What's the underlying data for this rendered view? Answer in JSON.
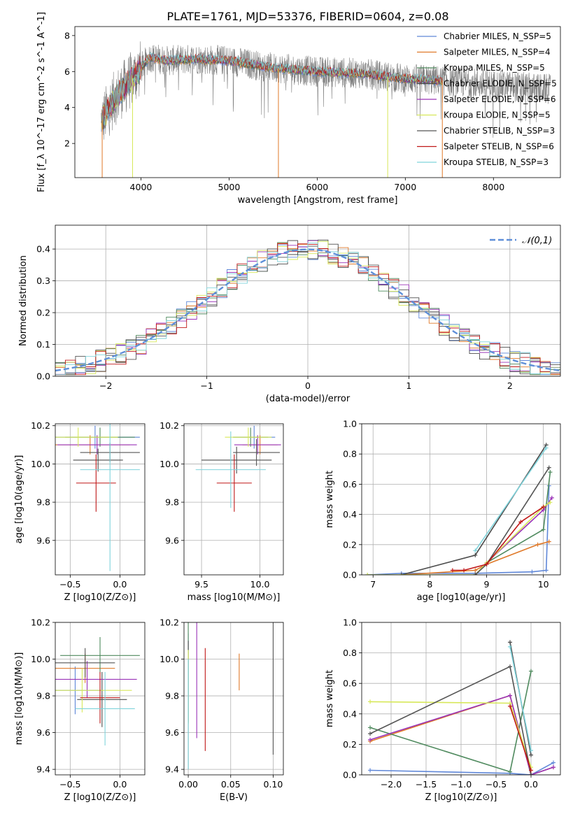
{
  "title": "PLATE=1761, MJD=53376, FIBERID=0604, z=0.08",
  "legend_entries": [
    {
      "label": "Chabrier MILES, N_SSP=5",
      "color": "#5f87d8"
    },
    {
      "label": "Salpeter MILES, N_SSP=4",
      "color": "#e07a2a"
    },
    {
      "label": "Kroupa MILES, N_SSP=5",
      "color": "#4f8a5e"
    },
    {
      "label": "Chabrier ELODIE, N_SSP=5",
      "color": "#4b4b4b"
    },
    {
      "label": "Salpeter ELODIE, N_SSP=6",
      "color": "#9a33b8"
    },
    {
      "label": "Kroupa ELODIE, N_SSP=5",
      "color": "#d7e85a"
    },
    {
      "label": "Chabrier STELIB, N_SSP=3",
      "color": "#555555"
    },
    {
      "label": "Salpeter STELIB, N_SSP=6",
      "color": "#c01818"
    },
    {
      "label": "Kroupa STELIB, N_SSP=3",
      "color": "#7fd3db"
    }
  ],
  "chart_data": [
    {
      "type": "line",
      "id": "spectrum",
      "xlabel": "wavelength [Angstrom, rest frame]",
      "ylabel": "Flux [f_λ 10^-17 erg cm^-2 s^-1 A^-1]",
      "xlim": [
        3250,
        8760
      ],
      "ylim": [
        0.1,
        8.5
      ],
      "xticks": [
        4000,
        5000,
        6000,
        7000,
        8000
      ],
      "yticks": [
        2,
        4,
        6,
        8
      ],
      "continuum_x": [
        3550,
        3700,
        3900,
        4100,
        4300,
        4600,
        5000,
        5500,
        6000,
        6500,
        7000,
        7400
      ],
      "continuum_y": [
        3.2,
        4.5,
        5.6,
        6.8,
        6.6,
        6.7,
        6.6,
        6.2,
        6.0,
        5.9,
        5.6,
        5.5
      ],
      "data_extent": [
        3550,
        8650
      ]
    },
    {
      "type": "histogram",
      "id": "residuals",
      "xlabel": "(data-model)/error",
      "ylabel": "Normed distribution",
      "xlim": [
        -2.5,
        2.5
      ],
      "ylim": [
        0,
        0.475
      ],
      "xticks": [
        -2,
        -1,
        0,
        1,
        2
      ],
      "yticks": [
        0.0,
        0.1,
        0.2,
        0.3,
        0.4
      ],
      "reference_curve": "N(0,1)"
    },
    {
      "type": "scatter",
      "id": "age_vs_Z",
      "xlabel": "Z [log10(Z/Z⊙)]",
      "ylabel": "age  [log10(age/yr)]",
      "xlim": [
        -0.65,
        0.25
      ],
      "ylim": [
        9.42,
        10.21
      ],
      "xticks": [
        -0.5,
        0.0
      ],
      "yticks": [
        9.6,
        9.8,
        10.0,
        10.2
      ]
    },
    {
      "type": "scatter",
      "id": "age_vs_mass",
      "xlabel": "mass [log10(M/M⊙)]",
      "xlim": [
        9.35,
        10.2
      ],
      "ylim": [
        9.42,
        10.21
      ],
      "xticks": [
        9.5,
        10.0
      ],
      "yticks": [
        9.6,
        9.8,
        10.0,
        10.2
      ]
    },
    {
      "type": "line",
      "id": "massweight_vs_age",
      "xlabel": "age  [log10(age/yr)]",
      "ylabel": "mass weight",
      "xlim": [
        6.8,
        10.3
      ],
      "ylim": [
        0,
        1
      ],
      "xticks": [
        7,
        8,
        9,
        10
      ],
      "yticks": [
        0.0,
        0.2,
        0.4,
        0.6,
        0.8,
        1.0
      ]
    },
    {
      "type": "scatter",
      "id": "mass_vs_Z",
      "xlabel": "Z [log10(Z/Z⊙)]",
      "ylabel": "mass [log10(M/M⊙)]",
      "xlim": [
        -0.65,
        0.25
      ],
      "ylim": [
        9.37,
        10.2
      ],
      "xticks": [
        -0.5,
        0.0
      ],
      "yticks": [
        9.4,
        9.6,
        9.8,
        10.0,
        10.2
      ]
    },
    {
      "type": "scatter",
      "id": "mass_vs_EBV",
      "xlabel": "E(B-V)",
      "xlim": [
        -0.005,
        0.112
      ],
      "ylim": [
        9.37,
        10.2
      ],
      "xticks": [
        0.0,
        0.05,
        0.1
      ],
      "yticks": [
        9.4,
        9.6,
        9.8,
        10.0,
        10.2
      ]
    },
    {
      "type": "line",
      "id": "massweight_vs_Z",
      "xlabel": "Z [log10(Z/Z⊙)]",
      "ylabel": "mass weight",
      "xlim": [
        -2.42,
        0.42
      ],
      "ylim": [
        0,
        1
      ],
      "xticks": [
        -2.0,
        -1.5,
        -1.0,
        -0.5,
        0.0
      ],
      "yticks": [
        0.0,
        0.2,
        0.4,
        0.6,
        0.8,
        1.0
      ]
    }
  ],
  "fits": [
    {
      "ageZ": [
        -0.25,
        10.14,
        0.45,
        0.06
      ],
      "ageM": [
        9.95,
        10.14,
        0.18,
        0.06
      ],
      "massZ": [
        -0.45,
        9.83,
        0.28,
        0.13
      ],
      "massE": [
        0.0,
        9.9,
        0.24
      ],
      "ageW": [
        [
          6.9,
          0.0
        ],
        [
          7.5,
          0.01
        ],
        [
          8.8,
          0.01
        ],
        [
          9.8,
          0.02
        ],
        [
          10.05,
          0.03
        ],
        [
          10.1,
          0.59
        ]
      ],
      "zW": [
        [
          -2.3,
          0.03
        ],
        [
          -0.3,
          0.01
        ],
        [
          0.0,
          0.0
        ],
        [
          0.32,
          0.08
        ]
      ]
    },
    {
      "ageZ": [
        -0.3,
        10.1,
        0.4,
        0.05
      ],
      "ageM": [
        10.0,
        10.1,
        0.15,
        0.05
      ],
      "massZ": [
        -0.35,
        9.95,
        0.3,
        0.08
      ],
      "massE": [
        0.06,
        9.93,
        0.1
      ],
      "ageW": [
        [
          7.5,
          0.0
        ],
        [
          8.8,
          0.03
        ],
        [
          9.0,
          0.07
        ],
        [
          9.9,
          0.2
        ],
        [
          10.1,
          0.22
        ]
      ],
      "zW": [
        [
          -2.3,
          0.22
        ],
        [
          -0.3,
          0.52
        ],
        [
          0.0,
          0.0
        ],
        [
          0.32,
          0.05
        ]
      ]
    },
    {
      "ageZ": [
        -0.2,
        10.14,
        0.35,
        0.05
      ],
      "ageM": [
        9.92,
        10.14,
        0.15,
        0.05
      ],
      "massZ": [
        -0.2,
        10.02,
        0.4,
        0.1
      ],
      "massE": [
        0.0,
        9.95,
        0.3
      ],
      "ageW": [
        [
          8.8,
          0.0
        ],
        [
          9.0,
          0.08
        ],
        [
          10.0,
          0.3
        ],
        [
          10.12,
          0.68
        ]
      ],
      "zW": [
        [
          -2.3,
          0.31
        ],
        [
          -0.3,
          0.02
        ],
        [
          0.0,
          0.68
        ]
      ]
    },
    {
      "ageZ": [
        -0.22,
        10.02,
        0.25,
        0.06
      ],
      "ageM": [
        9.8,
        10.02,
        0.3,
        0.07
      ],
      "massZ": [
        -0.18,
        9.78,
        0.25,
        0.15
      ],
      "massE": [
        0.0,
        9.75,
        0.35
      ],
      "ageW": [
        [
          7.5,
          0.0
        ],
        [
          8.8,
          0.13
        ],
        [
          10.05,
          0.86
        ]
      ],
      "zW": [
        [
          -0.3,
          0.87
        ],
        [
          0.0,
          0.13
        ]
      ]
    },
    {
      "ageZ": [
        -0.23,
        10.1,
        0.4,
        0.05
      ],
      "ageM": [
        9.98,
        10.1,
        0.2,
        0.05
      ],
      "massZ": [
        -0.33,
        9.89,
        0.5,
        0.1
      ],
      "massE": [
        0.01,
        9.92,
        0.35
      ],
      "ageW": [
        [
          8.8,
          0.0
        ],
        [
          9.0,
          0.08
        ],
        [
          10.0,
          0.43
        ],
        [
          10.15,
          0.51
        ]
      ],
      "zW": [
        [
          -2.3,
          0.23
        ],
        [
          -0.3,
          0.52
        ],
        [
          0.0,
          0.0
        ],
        [
          0.32,
          0.05
        ]
      ]
    },
    {
      "ageZ": [
        -0.42,
        10.14,
        0.4,
        0.05
      ],
      "ageM": [
        9.9,
        10.14,
        0.2,
        0.05
      ],
      "massZ": [
        -0.38,
        9.83,
        0.5,
        0.12
      ],
      "massE": [
        0.0,
        9.85,
        0.2
      ],
      "ageW": [
        [
          6.9,
          0.0
        ],
        [
          8.8,
          0.0
        ],
        [
          9.0,
          0.08
        ],
        [
          10.0,
          0.45
        ],
        [
          10.12,
          0.48
        ]
      ],
      "zW": [
        [
          -2.3,
          0.48
        ],
        [
          -0.3,
          0.47
        ],
        [
          0.0,
          0.05
        ]
      ]
    },
    {
      "ageZ": [
        -0.1,
        10.06,
        0.3,
        0.05
      ],
      "ageM": [
        9.97,
        10.06,
        0.2,
        0.07
      ],
      "massZ": [
        -0.35,
        9.98,
        0.3,
        0.08
      ],
      "massE": [
        0.1,
        9.88,
        0.4
      ],
      "ageW": [
        [
          8.8,
          0.0
        ],
        [
          9.0,
          0.07
        ],
        [
          10.1,
          0.71
        ]
      ],
      "zW": [
        [
          -2.3,
          0.27
        ],
        [
          -0.3,
          0.71
        ],
        [
          0.0,
          0.0
        ]
      ]
    },
    {
      "ageZ": [
        -0.24,
        9.9,
        0.2,
        0.15
      ],
      "ageM": [
        9.78,
        9.9,
        0.15,
        0.15
      ],
      "massZ": [
        -0.2,
        9.79,
        0.2,
        0.14
      ],
      "massE": [
        0.02,
        9.78,
        0.28
      ],
      "ageW": [
        [
          8.4,
          0.03
        ],
        [
          8.6,
          0.03
        ],
        [
          9.0,
          0.07
        ],
        [
          9.6,
          0.35
        ],
        [
          10.0,
          0.45
        ]
      ],
      "zW": [
        [
          -0.3,
          0.45
        ],
        [
          0.0,
          0.03
        ]
      ]
    },
    {
      "ageZ": [
        -0.1,
        9.97,
        0.3,
        0.53
      ],
      "ageM": [
        9.75,
        9.97,
        0.3,
        0.2
      ],
      "massZ": [
        -0.15,
        9.73,
        0.3,
        0.2
      ],
      "massE": [
        0.0,
        9.7,
        0.3
      ],
      "ageW": [
        [
          8.8,
          0.16
        ],
        [
          10.05,
          0.84
        ]
      ],
      "zW": [
        [
          -0.3,
          0.84
        ],
        [
          0.0,
          0.16
        ]
      ]
    }
  ]
}
